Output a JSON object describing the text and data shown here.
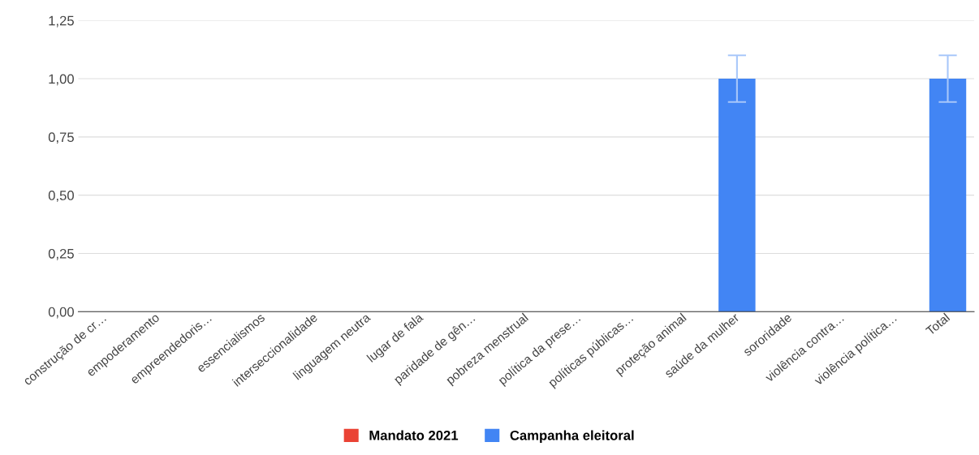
{
  "chart_data": {
    "type": "bar",
    "categories": [
      "construção de cr…",
      "empoderamento",
      "empreendedoris…",
      "essencialismos",
      "interseccionalidade",
      "linguagem neutra",
      "lugar de fala",
      "paridade de gên…",
      "pobreza menstrual",
      "política da prese…",
      "políticas públicas…",
      "proteção animal",
      "saúde da mulher",
      "sororidade",
      "violência contra…",
      "violência política…",
      "Total"
    ],
    "series": [
      {
        "name": "Mandato 2021",
        "color": "#ea4335",
        "values": [
          null,
          null,
          null,
          null,
          null,
          null,
          null,
          null,
          null,
          null,
          null,
          null,
          null,
          null,
          null,
          null,
          null
        ]
      },
      {
        "name": "Campanha eleitoral",
        "color": "#4285f4",
        "values": [
          0,
          0,
          0,
          0,
          0,
          0,
          0,
          0,
          0,
          0,
          0,
          0,
          1,
          0,
          0,
          0,
          1
        ],
        "errors": [
          null,
          null,
          null,
          null,
          null,
          null,
          null,
          null,
          null,
          null,
          null,
          null,
          0.1,
          null,
          null,
          null,
          0.1
        ]
      }
    ],
    "ylim": [
      0,
      1.25
    ],
    "yticks": [
      {
        "value": 0,
        "label": "0,00"
      },
      {
        "value": 0.25,
        "label": "0,25"
      },
      {
        "value": 0.5,
        "label": "0,50"
      },
      {
        "value": 0.75,
        "label": "0,75"
      },
      {
        "value": 1,
        "label": "1,00"
      },
      {
        "value": 1.25,
        "label": "1,25"
      }
    ],
    "grid": "y",
    "legend": "bottom"
  }
}
